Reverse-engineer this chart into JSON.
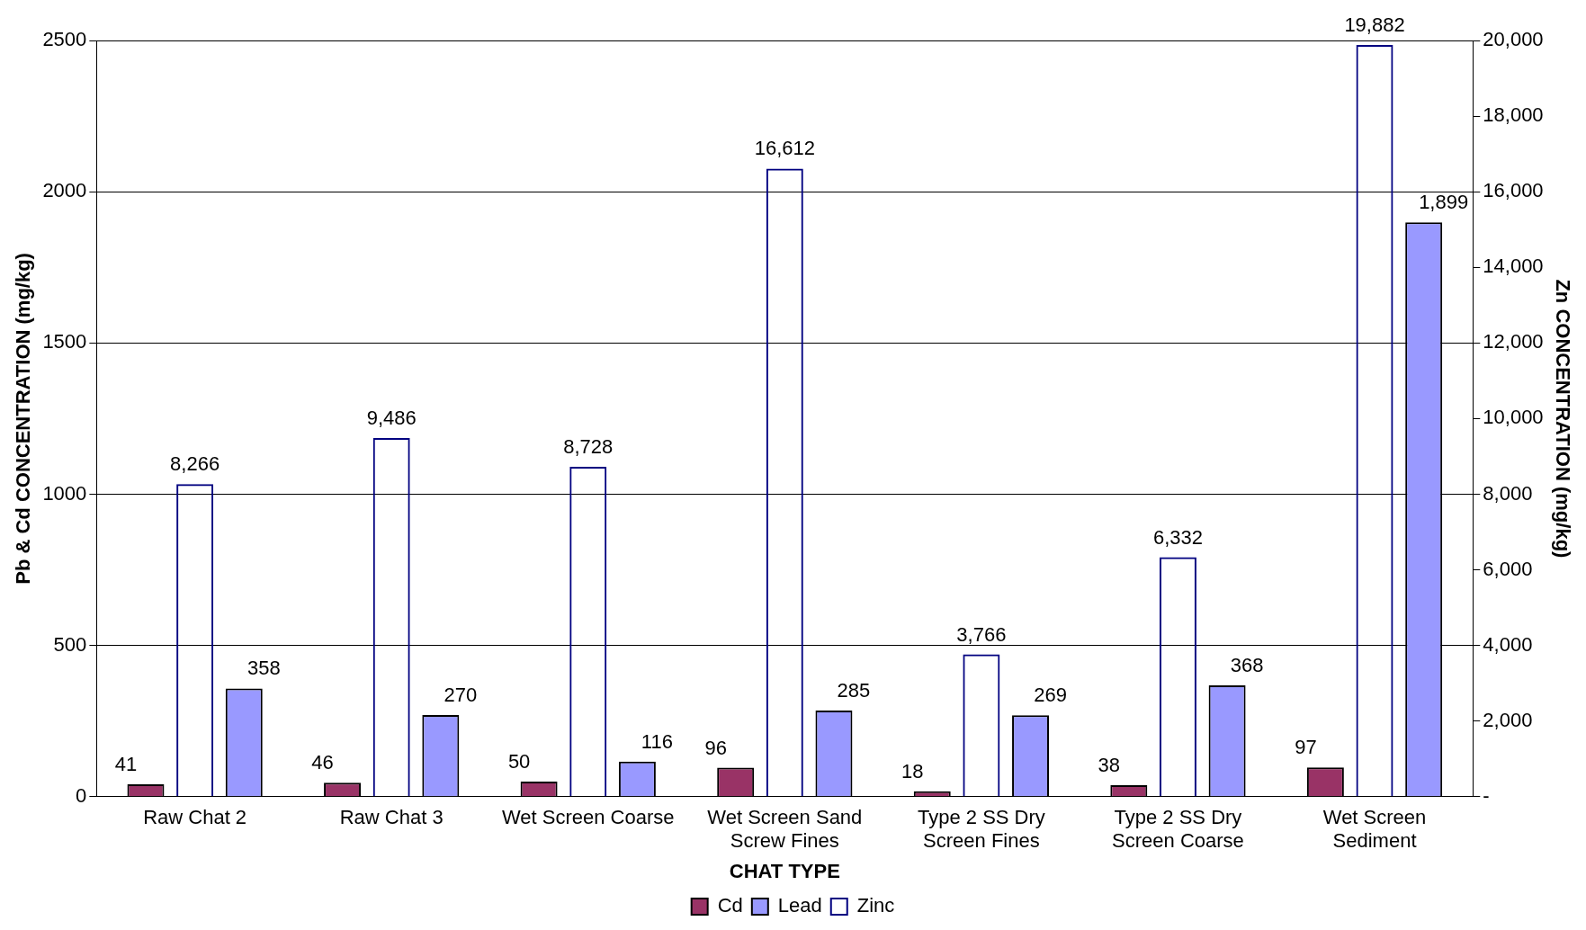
{
  "chart_data": {
    "type": "bar",
    "xlabel": "CHAT TYPE",
    "ylabel": "Pb & Cd CONCENTRATION (mg/kg)",
    "y2label": "Zn CONCENTRATION (mg/kg)",
    "categories": [
      "Raw Chat 2",
      "Raw Chat 3",
      "Wet Screen Coarse",
      "Wet Screen Sand Screw Fines",
      "Type 2 SS Dry Screen Fines",
      "Type 2 SS Dry Screen Coarse",
      "Wet Screen Sediment"
    ],
    "series": [
      {
        "name": "Cd",
        "color": "#993366",
        "values": [
          41,
          46,
          50,
          96,
          18,
          38,
          97
        ],
        "value_labels": [
          "41",
          "46",
          "50",
          "96",
          "18",
          "38",
          "97"
        ]
      },
      {
        "name": "Zinc",
        "color": "#000080",
        "axis": "y2",
        "values": [
          8266,
          9486,
          8728,
          16612,
          3766,
          6332,
          19882
        ],
        "value_labels": [
          "8,266",
          "9,486",
          "8,728",
          "16,612",
          "3,766",
          "6,332",
          "19,882"
        ]
      },
      {
        "name": "Lead",
        "color": "#9999ff",
        "values": [
          358,
          270,
          116,
          285,
          269,
          368,
          1899
        ],
        "value_labels": [
          "358",
          "270",
          "116",
          "285",
          "269",
          "368",
          "1,899"
        ]
      }
    ],
    "ylim": [
      0,
      2500
    ],
    "yticks": [
      0,
      500,
      1000,
      1500,
      2000,
      2500
    ],
    "y2lim": [
      0,
      20000
    ],
    "y2ticks": [
      {
        "value": 0,
        "label": "-"
      },
      {
        "value": 2000,
        "label": "2,000"
      },
      {
        "value": 4000,
        "label": "4,000"
      },
      {
        "value": 6000,
        "label": "6,000"
      },
      {
        "value": 8000,
        "label": "8,000"
      },
      {
        "value": 10000,
        "label": "10,000"
      },
      {
        "value": 12000,
        "label": "12,000"
      },
      {
        "value": 14000,
        "label": "14,000"
      },
      {
        "value": 16000,
        "label": "16,000"
      },
      {
        "value": 18000,
        "label": "18,000"
      },
      {
        "value": 20000,
        "label": "20,000"
      }
    ],
    "grid": "y",
    "legend": "bottom"
  }
}
